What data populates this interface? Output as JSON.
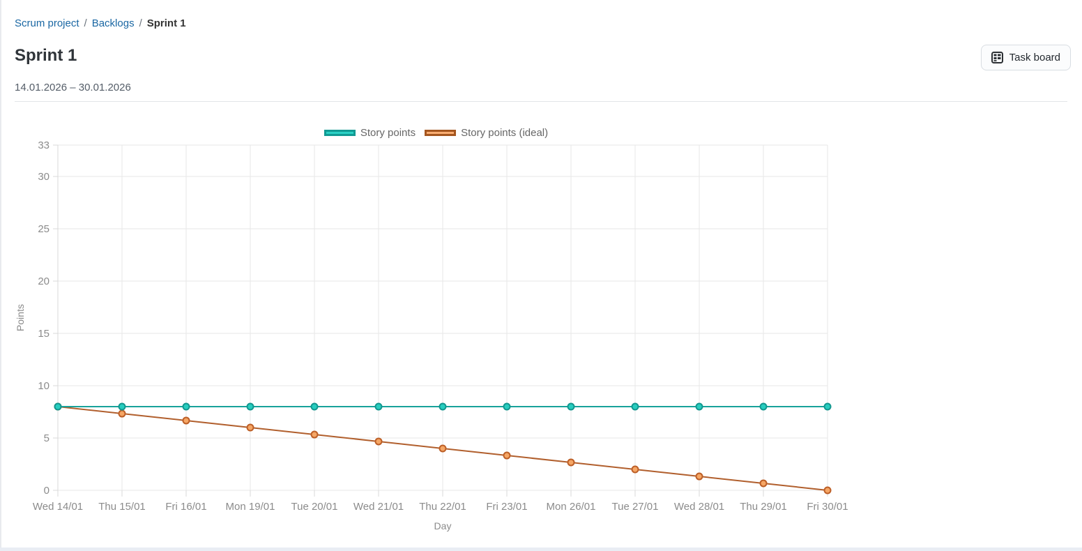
{
  "page": {
    "breadcrumb": {
      "separator": "/",
      "items": [
        {
          "label": "Scrum project"
        },
        {
          "label": "Backlogs"
        },
        {
          "label": "Sprint 1"
        }
      ]
    },
    "title": "Sprint 1",
    "date_range": "14.01.2026 – 30.01.2026",
    "task_board_button": {
      "label": "Task board"
    }
  },
  "chart_data": {
    "type": "line",
    "title": "",
    "xlabel": "Day",
    "ylabel": "Points",
    "categories": [
      "Wed 14/01",
      "Thu 15/01",
      "Fri 16/01",
      "Mon 19/01",
      "Tue 20/01",
      "Wed 21/01",
      "Thu 22/01",
      "Fri 23/01",
      "Mon 26/01",
      "Tue 27/01",
      "Wed 28/01",
      "Thu 29/01",
      "Fri 30/01"
    ],
    "series": [
      {
        "name": "Story points",
        "values": [
          8,
          8,
          8,
          8,
          8,
          8,
          8,
          8,
          8,
          8,
          8,
          8,
          8
        ],
        "line_color": "#18a29a",
        "point_fill": "#27cdbf",
        "point_stroke": "#13978f",
        "legend_fill": "#2bd1c5",
        "legend_border": "#119a93"
      },
      {
        "name": "Story points (ideal)",
        "values": [
          8,
          7.33,
          6.67,
          6,
          5.33,
          4.67,
          4,
          3.33,
          2.67,
          2,
          1.33,
          0.67,
          0
        ],
        "line_color": "#b15f2d",
        "point_fill": "#f5a665",
        "point_stroke": "#bd5f27",
        "legend_fill": "#f8ad72",
        "legend_border": "#a5561f"
      }
    ],
    "y_ticks": [
      0,
      5,
      10,
      15,
      20,
      25,
      30,
      33
    ],
    "ylim": [
      0,
      33
    ],
    "grid": true,
    "legend_position": "top"
  },
  "colors": {
    "link": "#1a67a3",
    "grid": "#e7e7e7",
    "axis": "#d8d8d8",
    "tick_label": "#8b8b8b",
    "legend_text": "#666666",
    "divider": "#e2e5e8"
  }
}
